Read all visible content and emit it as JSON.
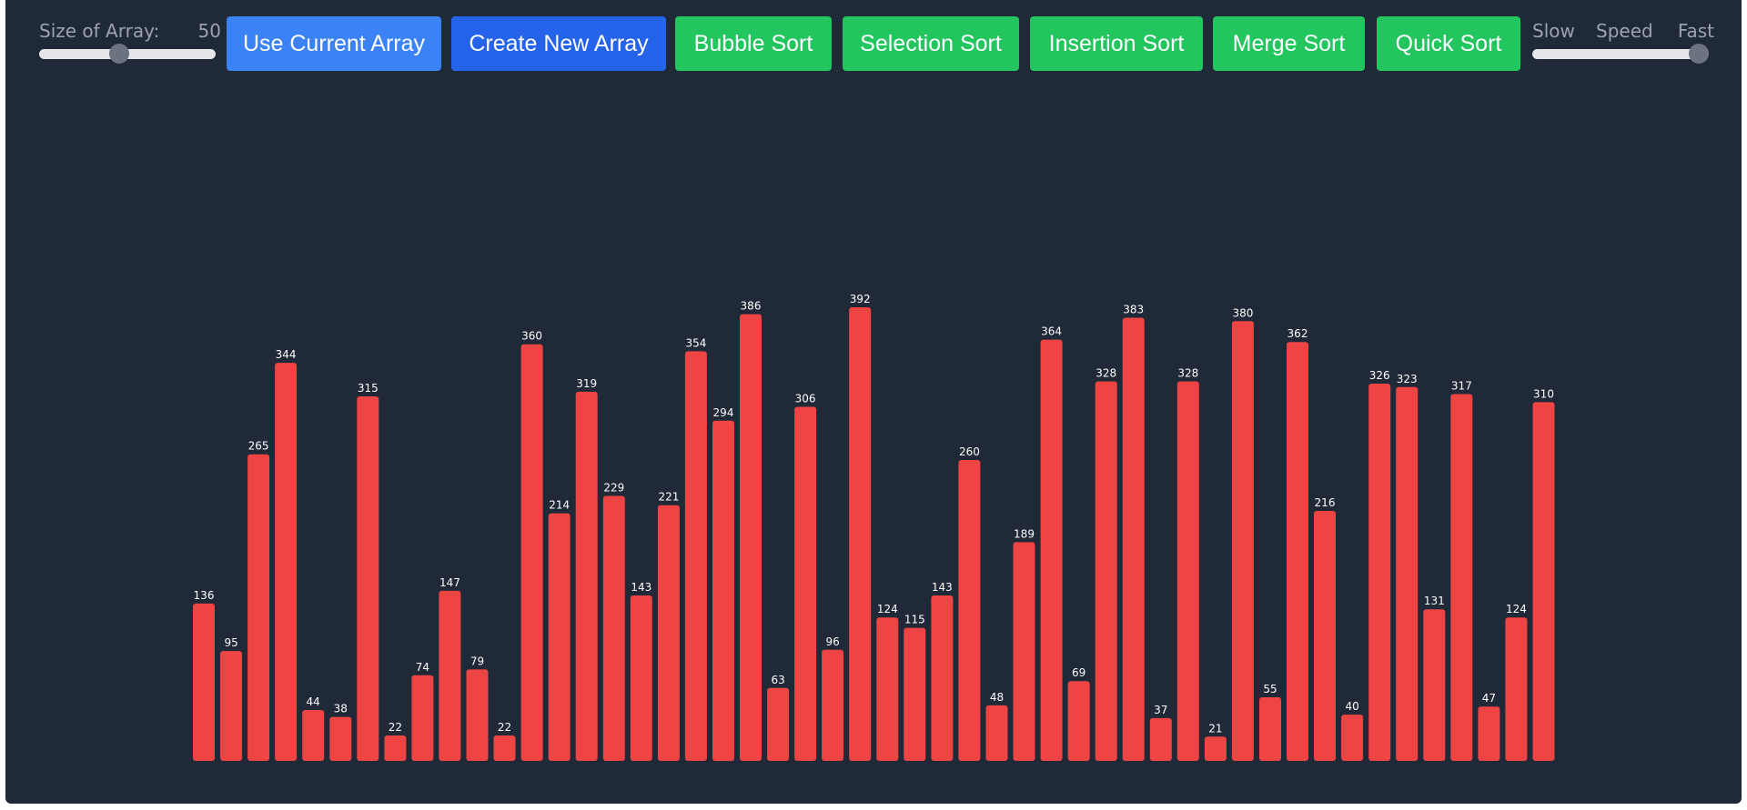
{
  "controls": {
    "size_label": "Size of Array:",
    "size_value": "50",
    "size_slider_fraction": 0.45,
    "speed_slow_label": "Slow",
    "speed_label": "Speed",
    "speed_fast_label": "Fast",
    "speed_slider_fraction": 1.0
  },
  "buttons": {
    "use_current": "Use Current Array",
    "create_new": "Create New Array",
    "bubble": "Bubble Sort",
    "selection": "Selection Sort",
    "insertion": "Insertion Sort",
    "merge": "Merge Sort",
    "quick": "Quick Sort"
  },
  "colors": {
    "background": "#1f2937",
    "bar": "#ef4444",
    "button_green": "#22c55e",
    "button_blue": "#2563eb",
    "button_light_blue": "#3b82f6"
  },
  "chart_data": {
    "type": "bar",
    "values": [
      136,
      95,
      265,
      344,
      44,
      38,
      315,
      22,
      74,
      147,
      79,
      22,
      360,
      214,
      319,
      229,
      143,
      221,
      354,
      294,
      386,
      63,
      306,
      96,
      392,
      124,
      115,
      143,
      260,
      48,
      189,
      364,
      69,
      328,
      383,
      37,
      328,
      21,
      380,
      55,
      362,
      216,
      40,
      326,
      323,
      131,
      317,
      47,
      124,
      310
    ],
    "title": "",
    "xlabel": "",
    "ylabel": "",
    "ylim": [
      0,
      392
    ],
    "grid": false
  }
}
